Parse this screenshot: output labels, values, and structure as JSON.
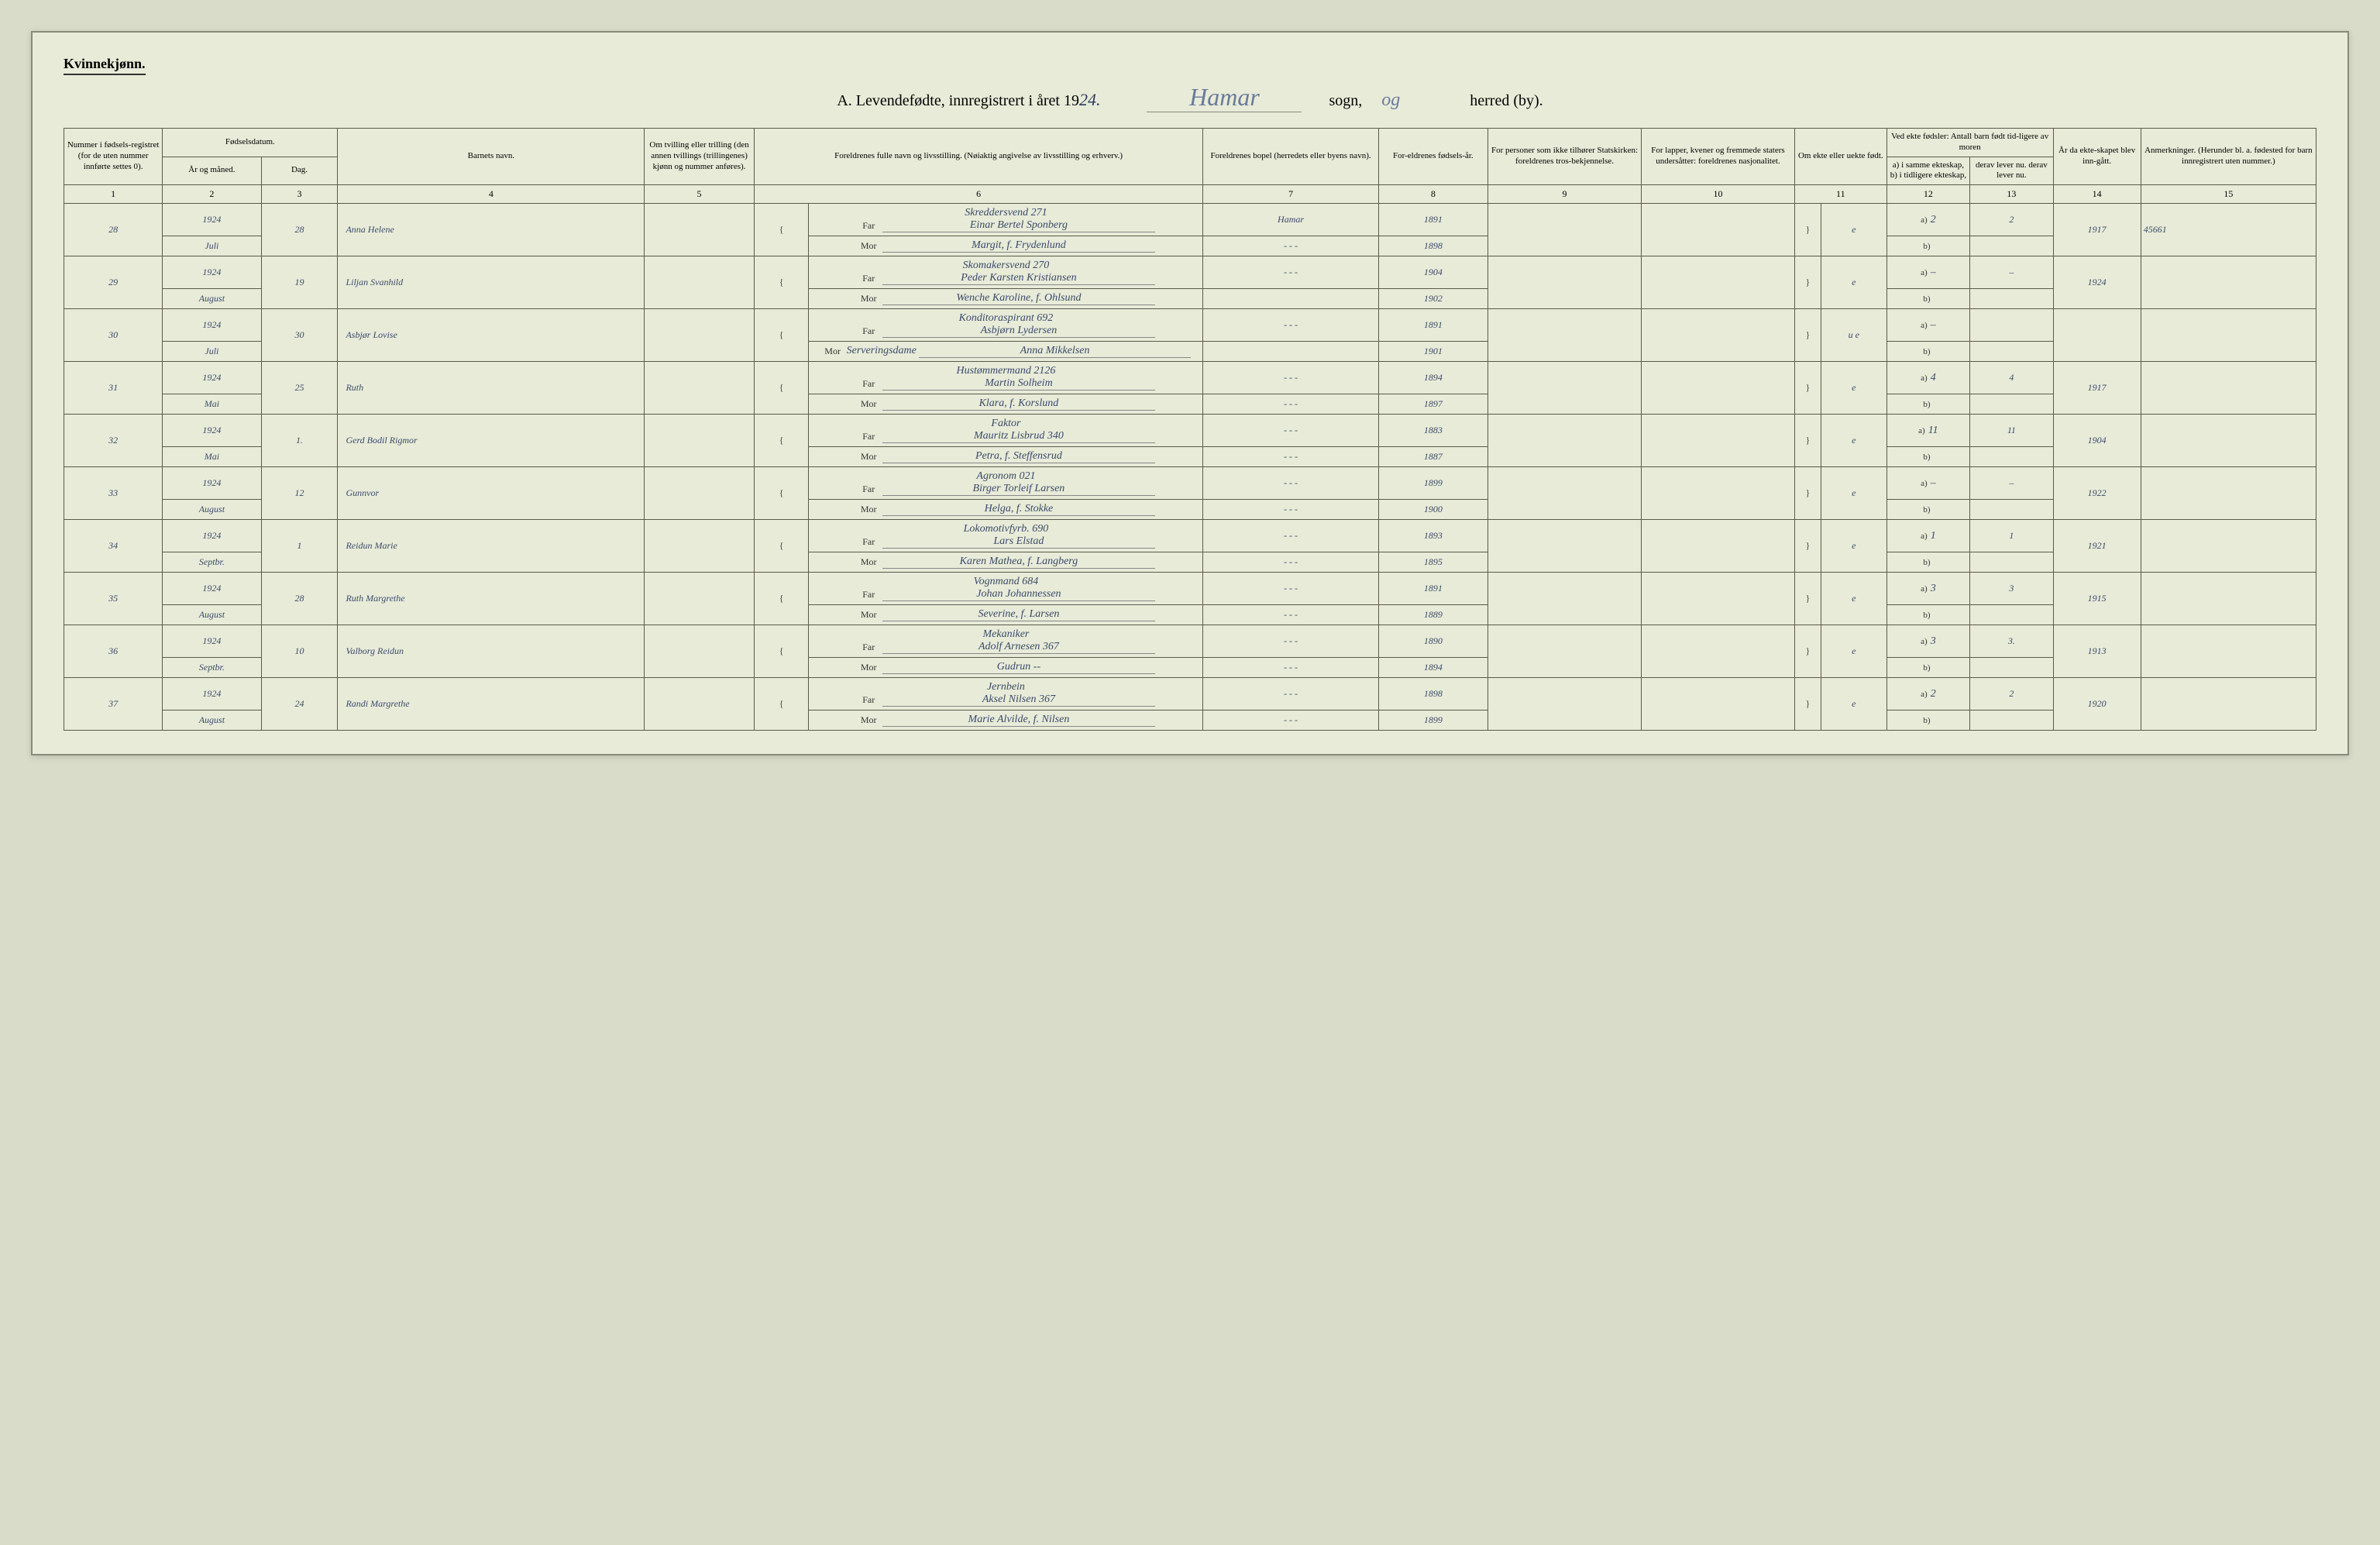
{
  "header": {
    "gender_label": "Kvinnekjønn.",
    "title_prefix": "A.  Levendefødte, innregistrert i året 19",
    "year_hw": "24.",
    "sogn_hw": "Hamar",
    "sogn_label": "sogn,",
    "og_hw": "og",
    "herred_label": "herred (by)."
  },
  "columns": {
    "c1": "Nummer i fødsels-registret (for de uten nummer innførte settes 0).",
    "c2_top": "Fødselsdatum.",
    "c2": "År og måned.",
    "c3": "Dag.",
    "c4": "Barnets navn.",
    "c5": "Om tvilling eller trilling (den annen tvillings (trillingenes) kjønn og nummer anføres).",
    "c6": "Foreldrenes fulle navn og livsstilling.\n(Nøiaktig angivelse av livsstilling og erhverv.)",
    "c7": "Foreldrenes bopel (herredets eller byens navn).",
    "c8": "For-eldrenes fødsels-år.",
    "c9": "For personer som ikke tilhører Statskirken: foreldrenes tros-bekjennelse.",
    "c10": "For lapper, kvener og fremmede staters undersåtter: foreldrenes nasjonalitet.",
    "c11": "Om ekte eller uekte født.",
    "c12_top": "Ved ekte fødsler:\nAntall barn født tid-ligere av moren",
    "c12": "a) i samme ekteskap,\nb) i tidligere ekteskap,",
    "c13": "derav lever nu.\nderav lever nu.",
    "c14": "År da ekte-skapet blev inn-gått.",
    "c15": "Anmerkninger.\n(Herunder bl. a. fødested for barn innregistrert uten nummer.)"
  },
  "colnums": [
    "1",
    "2",
    "3",
    "4",
    "5",
    "6",
    "7",
    "8",
    "9",
    "10",
    "11",
    "12",
    "13",
    "14",
    "15"
  ],
  "far_label": "Far",
  "mor_label": "Mor",
  "a_label": "a)",
  "b_label": "b)",
  "rows": [
    {
      "num": "28",
      "year": "1924",
      "month": "Juli",
      "day": "28",
      "name": "Anna Helene",
      "far_occ": "Skreddersvend   271",
      "far": "Einar Bertel Sponberg",
      "mor": "Margit, f. Frydenlund",
      "bopel_far": "Hamar",
      "bopel_mor": "-  -  -",
      "foar_far": "1891",
      "foar_mor": "1898",
      "ekte": "e",
      "a_val": "2",
      "a_lever": "2",
      "b_val": "",
      "b_lever": "",
      "aar_ekte": "1917",
      "annot": "45661"
    },
    {
      "num": "29",
      "year": "1924",
      "month": "August",
      "day": "19",
      "name": "Liljan Svanhild",
      "far_occ": "Skomakersvend   270",
      "far": "Peder Karsten Kristiansen",
      "mor": "Wenche Karoline, f. Ohlsund",
      "bopel_far": "-  -  -",
      "bopel_mor": "",
      "foar_far": "1904",
      "foar_mor": "1902",
      "ekte": "e",
      "a_val": "–",
      "a_lever": "–",
      "b_val": "",
      "b_lever": "",
      "aar_ekte": "1924",
      "annot": ""
    },
    {
      "num": "30",
      "year": "1924",
      "month": "Juli",
      "day": "30",
      "name": "Asbjør Lovise",
      "far_occ": "Konditoraspirant   692",
      "far": "Asbjørn Lydersen",
      "mor_occ": "Serveringsdame",
      "mor": "Anna Mikkelsen",
      "bopel_far": "-  -  -",
      "bopel_mor": "",
      "foar_far": "1891",
      "foar_mor": "1901",
      "ekte": "u e",
      "a_val": "–",
      "a_lever": "",
      "b_val": "",
      "b_lever": "",
      "aar_ekte": "",
      "annot": "",
      "cross": true
    },
    {
      "num": "31",
      "year": "1924",
      "month": "Mai",
      "day": "25",
      "name": "Ruth",
      "far_occ": "Hustømmermand   2126",
      "far": "Martin Solheim",
      "mor": "Klara, f. Korslund",
      "bopel_far": "-  -  -",
      "bopel_mor": "-  -  -",
      "foar_far": "1894",
      "foar_mor": "1897",
      "ekte": "e",
      "a_val": "4",
      "a_lever": "4",
      "b_val": "",
      "b_lever": "",
      "aar_ekte": "1917",
      "annot": ""
    },
    {
      "num": "32",
      "year": "1924",
      "month": "Mai",
      "day": "1.",
      "name": "Gerd Bodil Rigmor",
      "far_occ": "Faktor",
      "far": "Mauritz Lisbrud   340",
      "mor": "Petra, f. Steffensrud",
      "bopel_far": "-  -  -",
      "bopel_mor": "-  -  -",
      "foar_far": "1883",
      "foar_mor": "1887",
      "ekte": "e",
      "a_val": "11",
      "a_lever": "11",
      "b_val": "",
      "b_lever": "",
      "aar_ekte": "1904",
      "annot": ""
    },
    {
      "num": "33",
      "year": "1924",
      "month": "August",
      "day": "12",
      "name": "Gunnvor",
      "far_occ": "Agronom   021",
      "far": "Birger Torleif Larsen",
      "mor": "Helga, f. Stokke",
      "bopel_far": "-  -  -",
      "bopel_mor": "-  -  -",
      "foar_far": "1899",
      "foar_mor": "1900",
      "ekte": "e",
      "a_val": "–",
      "a_lever": "–",
      "b_val": "",
      "b_lever": "",
      "aar_ekte": "1922",
      "annot": ""
    },
    {
      "num": "34",
      "year": "1924",
      "month": "Septbr.",
      "day": "1",
      "name": "Reidun Marie",
      "far_occ": "Lokomotivfyrb.   690",
      "far": "Lars Elstad",
      "mor": "Karen Mathea, f. Langberg",
      "bopel_far": "-  -  -",
      "bopel_mor": "-  -  -",
      "foar_far": "1893",
      "foar_mor": "1895",
      "ekte": "e",
      "a_val": "1",
      "a_lever": "1",
      "b_val": "",
      "b_lever": "",
      "aar_ekte": "1921",
      "annot": ""
    },
    {
      "num": "35",
      "year": "1924",
      "month": "August",
      "day": "28",
      "name": "Ruth Margrethe",
      "far_occ": "Vognmand   684",
      "far": "Johan Johannessen",
      "mor": "Severine, f. Larsen",
      "bopel_far": "-  -  -",
      "bopel_mor": "-  -  -",
      "foar_far": "1891",
      "foar_mor": "1889",
      "ekte": "e",
      "a_val": "3",
      "a_lever": "3",
      "b_val": "",
      "b_lever": "",
      "aar_ekte": "1915",
      "annot": "",
      "xmark": true
    },
    {
      "num": "36",
      "year": "1924",
      "month": "Septbr.",
      "day": "10",
      "name": "Valborg Reidun",
      "far_occ": "Mekaniker",
      "far": "Adolf Arnesen   367",
      "mor": "Gudrun --",
      "bopel_far": "-  -  -",
      "bopel_mor": "-  -  -",
      "foar_far": "1890",
      "foar_mor": "1894",
      "ekte": "e",
      "a_val": "3",
      "a_lever": "3.",
      "b_val": "",
      "b_lever": "",
      "aar_ekte": "1913",
      "annot": ""
    },
    {
      "num": "37",
      "year": "1924",
      "month": "August",
      "day": "24",
      "name": "Randi Margrethe",
      "far_occ": "Jernbein",
      "far": "Aksel Nilsen   367",
      "mor": "Marie Alvilde, f. Nilsen",
      "bopel_far": "-  -  -",
      "bopel_mor": "-  -  -",
      "foar_far": "1898",
      "foar_mor": "1899",
      "ekte": "e",
      "a_val": "2",
      "a_lever": "2",
      "b_val": "",
      "b_lever": "",
      "aar_ekte": "1920",
      "annot": ""
    }
  ],
  "colors": {
    "paper": "#e8ebd8",
    "ink_print": "#333333",
    "ink_hw": "#3a4a6a",
    "border": "#5a5a4a",
    "cross": "#2a5a8a"
  }
}
